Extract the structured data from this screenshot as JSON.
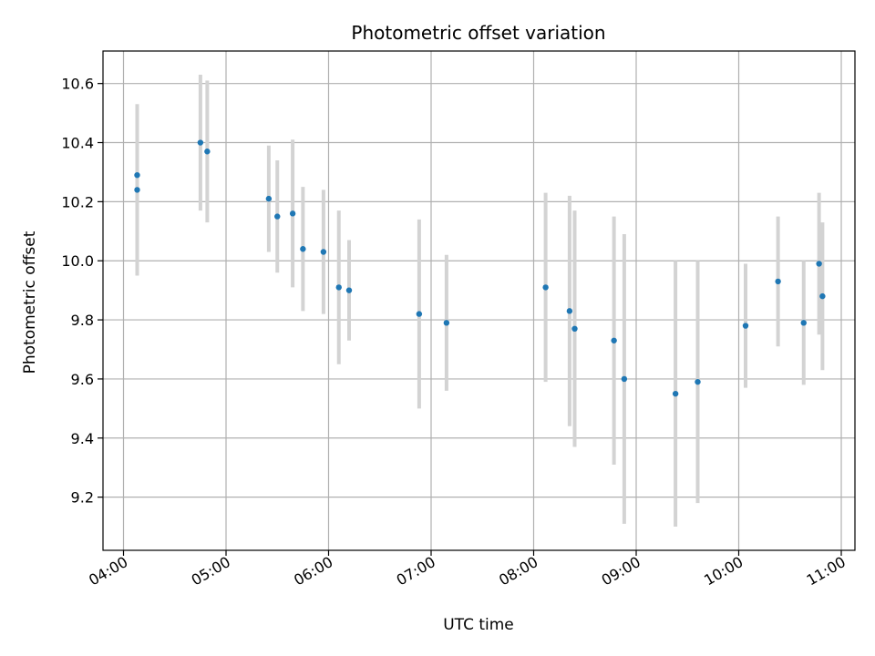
{
  "chart_data": {
    "type": "scatter",
    "title": "Photometric offset variation",
    "xlabel": "UTC time",
    "ylabel": "Photometric offset",
    "xlim": [
      "03:48",
      "11:08"
    ],
    "ylim": [
      9.02,
      10.71
    ],
    "grid": true,
    "colors": {
      "point": "#1f77b4",
      "errorbar": "#d3d3d3",
      "grid": "#b0b0b0"
    },
    "x_ticks": [
      "04:00",
      "05:00",
      "06:00",
      "07:00",
      "08:00",
      "09:00",
      "10:00",
      "11:00"
    ],
    "y_ticks": [
      9.2,
      9.4,
      9.6,
      9.8,
      10.0,
      10.2,
      10.4,
      10.6
    ],
    "y_tick_labels": [
      "9.2",
      "9.4",
      "9.6",
      "9.8",
      "10.0",
      "10.2",
      "10.4",
      "10.6"
    ],
    "points": [
      {
        "x": "04:08",
        "y": 10.29,
        "err": 0.24
      },
      {
        "x": "04:08",
        "y": 10.24,
        "err": 0.29
      },
      {
        "x": "04:45",
        "y": 10.4,
        "err": 0.23
      },
      {
        "x": "04:49",
        "y": 10.37,
        "err": 0.24
      },
      {
        "x": "05:25",
        "y": 10.21,
        "err": 0.18
      },
      {
        "x": "05:30",
        "y": 10.15,
        "err": 0.19
      },
      {
        "x": "05:39",
        "y": 10.16,
        "err": 0.25
      },
      {
        "x": "05:45",
        "y": 10.04,
        "err": 0.21
      },
      {
        "x": "05:57",
        "y": 10.03,
        "err": 0.21
      },
      {
        "x": "06:06",
        "y": 9.91,
        "err": 0.26
      },
      {
        "x": "06:12",
        "y": 9.9,
        "err": 0.17
      },
      {
        "x": "06:53",
        "y": 9.82,
        "err": 0.32
      },
      {
        "x": "07:09",
        "y": 9.79,
        "err": 0.23
      },
      {
        "x": "08:07",
        "y": 9.91,
        "err": 0.32
      },
      {
        "x": "08:21",
        "y": 9.83,
        "err": 0.39
      },
      {
        "x": "08:24",
        "y": 9.77,
        "err": 0.4
      },
      {
        "x": "08:47",
        "y": 9.73,
        "err": 0.42
      },
      {
        "x": "08:53",
        "y": 9.6,
        "err": 0.49
      },
      {
        "x": "09:23",
        "y": 9.55,
        "err": 0.45
      },
      {
        "x": "09:36",
        "y": 9.59,
        "err": 0.41
      },
      {
        "x": "10:04",
        "y": 9.78,
        "err": 0.21
      },
      {
        "x": "10:23",
        "y": 9.93,
        "err": 0.22
      },
      {
        "x": "10:38",
        "y": 9.79,
        "err": 0.21
      },
      {
        "x": "10:47",
        "y": 9.99,
        "err": 0.24
      },
      {
        "x": "10:49",
        "y": 9.88,
        "err": 0.25
      }
    ]
  }
}
